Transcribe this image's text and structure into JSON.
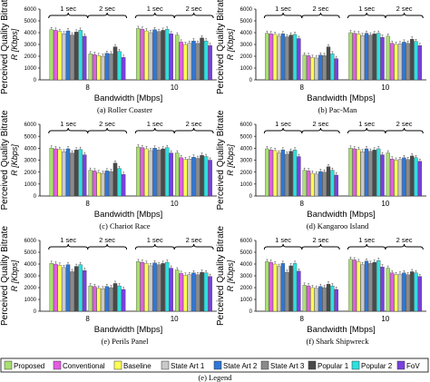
{
  "colors": {
    "Proposed": "#a8e070",
    "Conventional": "#e35ce3",
    "Baseline": "#ffff55",
    "State Art 1": "#c9c9c9",
    "State Art 2": "#2f77d6",
    "State Art 3": "#8a8a8a",
    "Popular 1": "#4a4a4a",
    "Popular 2": "#2ee0e0",
    "FoV": "#7a3fe0"
  },
  "legend": {
    "items": [
      "Proposed",
      "Conventional",
      "Baseline",
      "State Art 1",
      "State Art 2",
      "State Art 3",
      "Popular 1",
      "Popular 2",
      "FoV"
    ],
    "caption": "(e) Legend"
  },
  "chart_data": [
    {
      "type": "bar",
      "caption": "(a) Roller Coaster",
      "ylabel_line1": "Perceived Quality Bitrate",
      "ylabel_line2": "R [Kbps]",
      "xlabel": "Bandwidth [Mbps]",
      "yticks": [
        "0",
        "1000",
        "2000",
        "3000",
        "4000",
        "5000",
        "6000"
      ],
      "ylim": [
        0,
        6000
      ],
      "group_labels": [
        "8",
        "10"
      ],
      "subgroup_labels": [
        "1 sec",
        "2 sec",
        "1 sec",
        "2 sec"
      ],
      "values": [
        [
          4250,
          4200,
          4100,
          3900,
          4150,
          3800,
          4050,
          4200,
          3700
        ],
        [
          2200,
          2150,
          2050,
          2000,
          2250,
          2200,
          2800,
          2400,
          1900
        ],
        [
          4350,
          4300,
          4150,
          4000,
          4250,
          4100,
          4200,
          4300,
          3900
        ],
        [
          3800,
          3200,
          3000,
          3100,
          3300,
          3100,
          3550,
          3300,
          2900
        ]
      ]
    },
    {
      "type": "bar",
      "caption": "(b) Pac-Man",
      "ylabel_line1": "Perceived Quality Bitrate",
      "ylabel_line2": "R [Kbps]",
      "xlabel": "Bandwidth [Mbps]",
      "yticks": [
        "0",
        "1000",
        "2000",
        "3000",
        "4000",
        "5000",
        "6000"
      ],
      "ylim": [
        0,
        6000
      ],
      "group_labels": [
        "8",
        "10"
      ],
      "subgroup_labels": [
        "1 sec",
        "2 sec",
        "1 sec",
        "2 sec"
      ],
      "values": [
        [
          3950,
          3900,
          3850,
          3700,
          3900,
          3650,
          3800,
          3850,
          3500
        ],
        [
          2100,
          2050,
          1900,
          1850,
          2100,
          2050,
          2800,
          2200,
          1800
        ],
        [
          4000,
          3950,
          3900,
          3750,
          3950,
          3800,
          3900,
          3950,
          3600
        ],
        [
          3700,
          3100,
          3000,
          3050,
          3200,
          3100,
          3450,
          3250,
          2900
        ]
      ]
    },
    {
      "type": "bar",
      "caption": "(c) Chariot Race",
      "ylabel_line1": "Perceived Quality Bitrate",
      "ylabel_line2": "R [Kbps]",
      "xlabel": "Bandwidth [Mbps]",
      "yticks": [
        "0",
        "1000",
        "2000",
        "3000",
        "4000",
        "5000",
        "6000"
      ],
      "ylim": [
        0,
        6000
      ],
      "group_labels": [
        "8",
        "10"
      ],
      "subgroup_labels": [
        "1 sec",
        "2 sec",
        "1 sec",
        "2 sec"
      ],
      "values": [
        [
          4000,
          3950,
          3900,
          3700,
          3950,
          3600,
          3850,
          3900,
          3450
        ],
        [
          2150,
          2100,
          1950,
          1900,
          2100,
          2050,
          2750,
          2300,
          1800
        ],
        [
          4100,
          4050,
          3950,
          3800,
          4000,
          3850,
          3950,
          4050,
          3600
        ],
        [
          3600,
          3200,
          3050,
          3100,
          3250,
          3150,
          3400,
          3300,
          3000
        ]
      ]
    },
    {
      "type": "bar",
      "caption": "(d) Kangaroo Island",
      "ylabel_line1": "Perceived Quality Bitrate",
      "ylabel_line2": "R [Kbps]",
      "xlabel": "Bandwidth [Mbps]",
      "yticks": [
        "0",
        "1000",
        "2000",
        "3000",
        "4000",
        "5000",
        "6000"
      ],
      "ylim": [
        0,
        6000
      ],
      "group_labels": [
        "8",
        "10"
      ],
      "subgroup_labels": [
        "1 sec",
        "2 sec",
        "1 sec",
        "2 sec"
      ],
      "values": [
        [
          3950,
          3850,
          3800,
          3600,
          3850,
          3500,
          3750,
          3850,
          3300
        ],
        [
          2150,
          2100,
          1900,
          1850,
          2050,
          2000,
          2450,
          2150,
          1750
        ],
        [
          4000,
          3950,
          3900,
          3700,
          3950,
          3750,
          3850,
          3950,
          3450
        ],
        [
          3600,
          3100,
          3000,
          3050,
          3200,
          3050,
          3350,
          3200,
          2900
        ]
      ]
    },
    {
      "type": "bar",
      "caption": "(e) Perils Panel",
      "ylabel_line1": "Perceived Quality Bitrate",
      "ylabel_line2": "R [Kbps]",
      "xlabel": "Bandwidth [Mbps]",
      "yticks": [
        "0",
        "1000",
        "2000",
        "3000",
        "4000",
        "5000",
        "6000"
      ],
      "ylim": [
        0,
        6000
      ],
      "group_labels": [
        "8",
        "10"
      ],
      "subgroup_labels": [
        "1 sec",
        "2 sec",
        "1 sec",
        "2 sec"
      ],
      "values": [
        [
          4050,
          4000,
          3900,
          3700,
          3950,
          3350,
          3800,
          3950,
          3450
        ],
        [
          2150,
          2100,
          1950,
          1900,
          2100,
          2000,
          2350,
          2150,
          1850
        ],
        [
          4200,
          4150,
          4050,
          3850,
          4100,
          3950,
          4050,
          4150,
          3650
        ],
        [
          3500,
          3200,
          3050,
          3100,
          3250,
          3100,
          3300,
          3250,
          2950
        ]
      ]
    },
    {
      "type": "bar",
      "caption": "(f) Shark Shipwreck",
      "ylabel_line1": "Perceived Quality Bitrate",
      "ylabel_line2": "R [Kbps]",
      "xlabel": "Bandwidth [Mbps]",
      "yticks": [
        "0",
        "1000",
        "2000",
        "3000",
        "4000",
        "5000",
        "6000"
      ],
      "ylim": [
        0,
        6000
      ],
      "group_labels": [
        "8",
        "10"
      ],
      "subgroup_labels": [
        "1 sec",
        "2 sec",
        "1 sec",
        "2 sec"
      ],
      "values": [
        [
          4200,
          4150,
          4000,
          3800,
          4050,
          3300,
          3850,
          4050,
          3400
        ],
        [
          2200,
          2150,
          2000,
          1950,
          2100,
          2000,
          2300,
          2150,
          1850
        ],
        [
          4400,
          4350,
          4200,
          3950,
          4250,
          4050,
          4150,
          4300,
          3750
        ],
        [
          3650,
          3250,
          3100,
          3150,
          3250,
          3100,
          3350,
          3250,
          2950
        ]
      ]
    }
  ]
}
